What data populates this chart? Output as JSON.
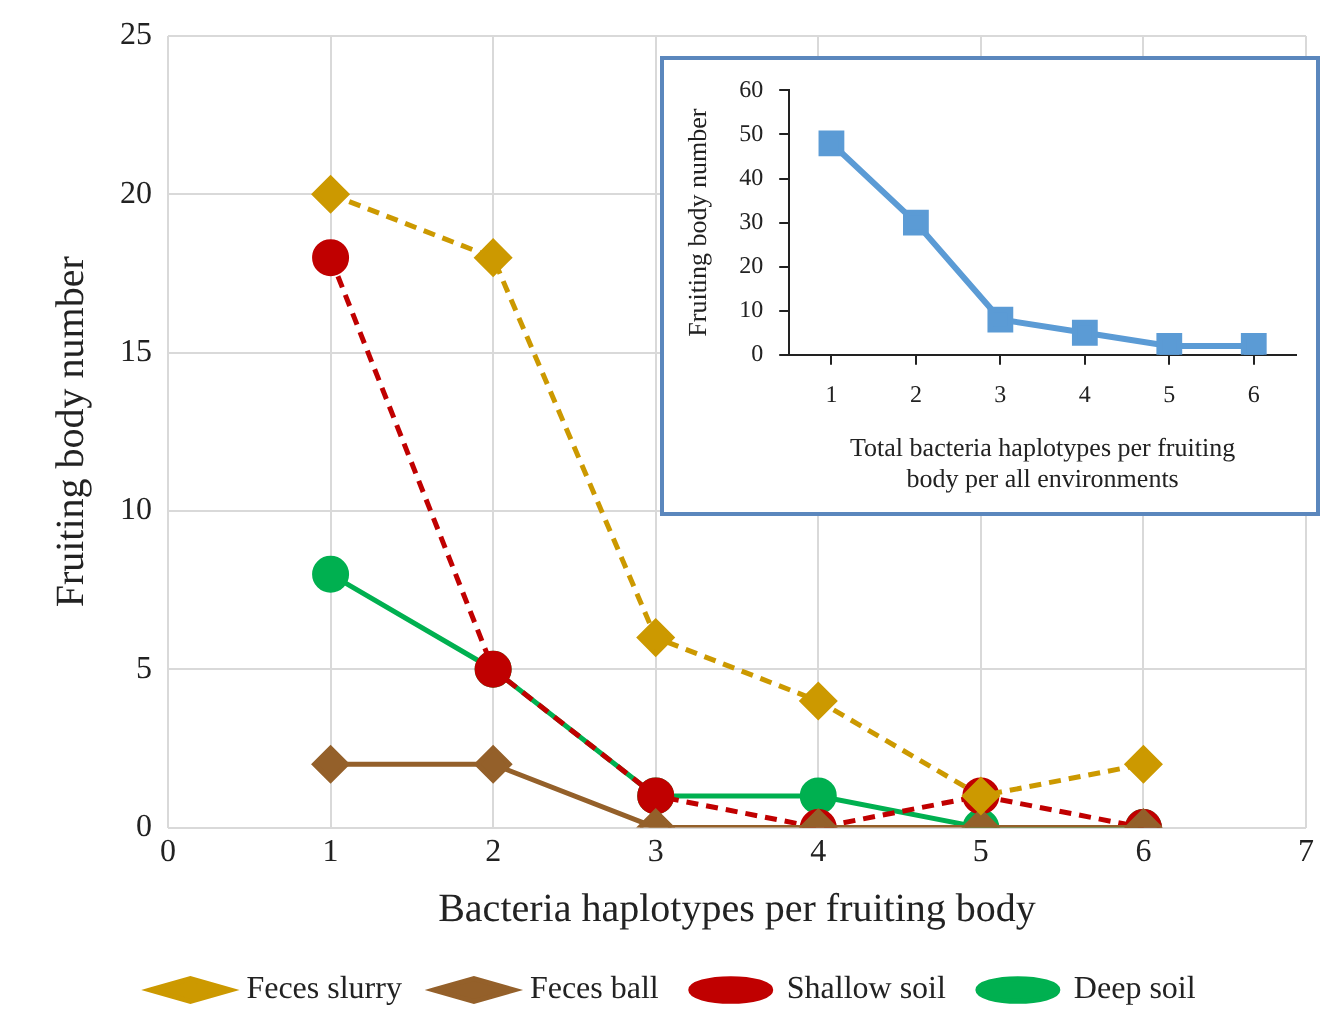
{
  "chart_data": [
    {
      "type": "line",
      "xlabel": "Bacteria haplotypes per fruiting body",
      "ylabel": "Fruiting body number",
      "x": [
        1,
        2,
        3,
        4,
        5,
        6
      ],
      "xlim": [
        0,
        7
      ],
      "xticks": [
        0,
        1,
        2,
        3,
        4,
        5,
        6,
        7
      ],
      "ylim": [
        0,
        25
      ],
      "yticks": [
        0,
        5,
        10,
        15,
        20,
        25
      ],
      "grid": true,
      "legend": "bottom",
      "series": [
        {
          "name": "Feces slurry",
          "color": "#cc9900",
          "marker": "diamond",
          "line_style": "dashed",
          "values": [
            20,
            18,
            6,
            4,
            1,
            2
          ]
        },
        {
          "name": "Feces ball",
          "color": "#94602a",
          "marker": "diamond",
          "line_style": "solid",
          "values": [
            2,
            2,
            0,
            0,
            0,
            0
          ]
        },
        {
          "name": "Shallow soil",
          "color": "#c00000",
          "marker": "circle",
          "line_style": "dashed",
          "values": [
            18,
            5,
            1,
            0,
            1,
            0
          ]
        },
        {
          "name": "Deep soil",
          "color": "#00b050",
          "marker": "circle",
          "line_style": "solid",
          "values": [
            8,
            5,
            1,
            1,
            0,
            0
          ]
        }
      ]
    },
    {
      "type": "line",
      "xlabel": "Total bacteria haplotypes per fruiting body per all environments",
      "ylabel": "Fruiting body number",
      "categories": [
        "1",
        "2",
        "3",
        "4",
        "5",
        "6"
      ],
      "ylim": [
        0,
        60
      ],
      "yticks": [
        0,
        10,
        20,
        30,
        40,
        50,
        60
      ],
      "grid": false,
      "legend": false,
      "series": [
        {
          "color": "#5b9bd5",
          "marker": "square",
          "line_style": "solid",
          "values": [
            48,
            30,
            8,
            5,
            2,
            2
          ]
        }
      ]
    }
  ]
}
